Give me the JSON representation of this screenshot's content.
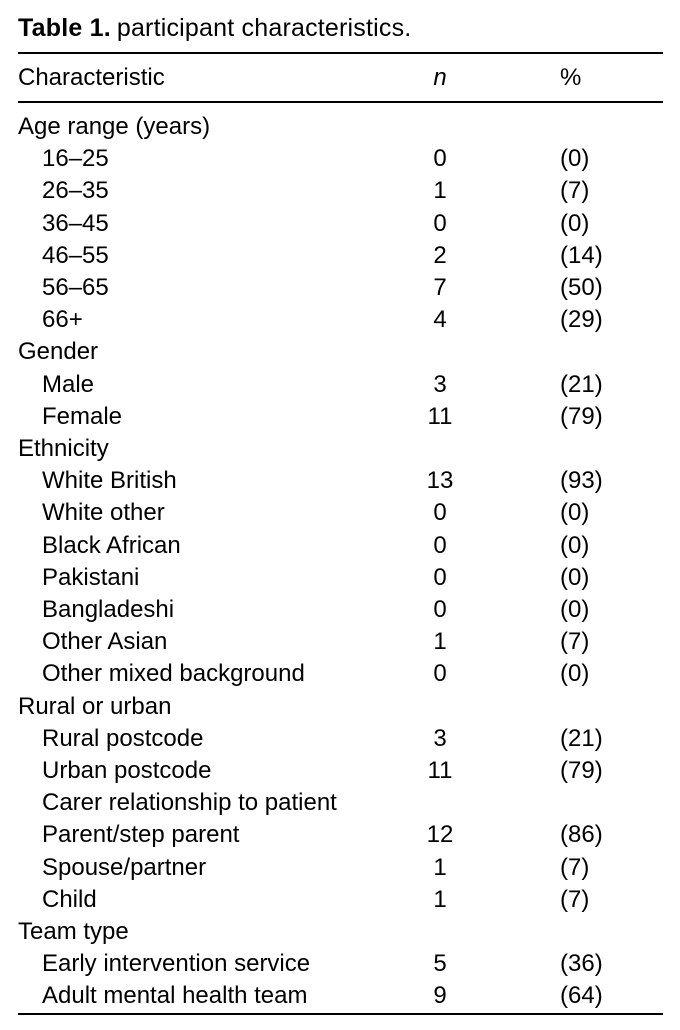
{
  "page": {
    "title": {
      "label": "Table 1.",
      "text": "participant characteristics."
    }
  },
  "table": {
    "columns": [
      {
        "key": "characteristic",
        "label": "Characteristic"
      },
      {
        "key": "n",
        "label": "n"
      },
      {
        "key": "percent",
        "label": "%"
      }
    ],
    "rows": [
      {
        "label": "Age range (years)",
        "indent": 0,
        "n": "",
        "percent": ""
      },
      {
        "label": "16–25",
        "indent": 1,
        "n": "0",
        "percent": "(0)"
      },
      {
        "label": "26–35",
        "indent": 1,
        "n": "1",
        "percent": "(7)"
      },
      {
        "label": "36–45",
        "indent": 1,
        "n": "0",
        "percent": "(0)"
      },
      {
        "label": "46–55",
        "indent": 1,
        "n": "2",
        "percent": "(14)"
      },
      {
        "label": "56–65",
        "indent": 1,
        "n": "7",
        "percent": "(50)"
      },
      {
        "label": "66+",
        "indent": 1,
        "n": "4",
        "percent": "(29)"
      },
      {
        "label": "Gender",
        "indent": 0,
        "n": "",
        "percent": ""
      },
      {
        "label": "Male",
        "indent": 1,
        "n": "3",
        "percent": "(21)"
      },
      {
        "label": "Female",
        "indent": 1,
        "n": "11",
        "percent": "(79)"
      },
      {
        "label": "Ethnicity",
        "indent": 0,
        "n": "",
        "percent": ""
      },
      {
        "label": "White British",
        "indent": 1,
        "n": "13",
        "percent": "(93)"
      },
      {
        "label": "White other",
        "indent": 1,
        "n": "0",
        "percent": "(0)"
      },
      {
        "label": "Black African",
        "indent": 1,
        "n": "0",
        "percent": "(0)"
      },
      {
        "label": "Pakistani",
        "indent": 1,
        "n": "0",
        "percent": "(0)"
      },
      {
        "label": "Bangladeshi",
        "indent": 1,
        "n": "0",
        "percent": "(0)"
      },
      {
        "label": "Other Asian",
        "indent": 1,
        "n": "1",
        "percent": "(7)"
      },
      {
        "label": "Other mixed background",
        "indent": 1,
        "n": "0",
        "percent": "(0)"
      },
      {
        "label": "Rural or urban",
        "indent": 0,
        "n": "",
        "percent": ""
      },
      {
        "label": "Rural postcode",
        "indent": 1,
        "n": "3",
        "percent": "(21)"
      },
      {
        "label": "Urban postcode",
        "indent": 1,
        "n": "11",
        "percent": "(79)"
      },
      {
        "label": "Carer relationship to patient",
        "indent": 1,
        "n": "",
        "percent": ""
      },
      {
        "label": "Parent/step parent",
        "indent": 1,
        "n": "12",
        "percent": "(86)"
      },
      {
        "label": "Spouse/partner",
        "indent": 1,
        "n": "1",
        "percent": "(7)"
      },
      {
        "label": "Child",
        "indent": 1,
        "n": "1",
        "percent": "(7)"
      },
      {
        "label": "Team type",
        "indent": 0,
        "n": "",
        "percent": ""
      },
      {
        "label": "Early intervention service",
        "indent": 1,
        "n": "5",
        "percent": "(36)"
      },
      {
        "label": "Adult mental health team",
        "indent": 1,
        "n": "9",
        "percent": "(64)"
      }
    ]
  }
}
